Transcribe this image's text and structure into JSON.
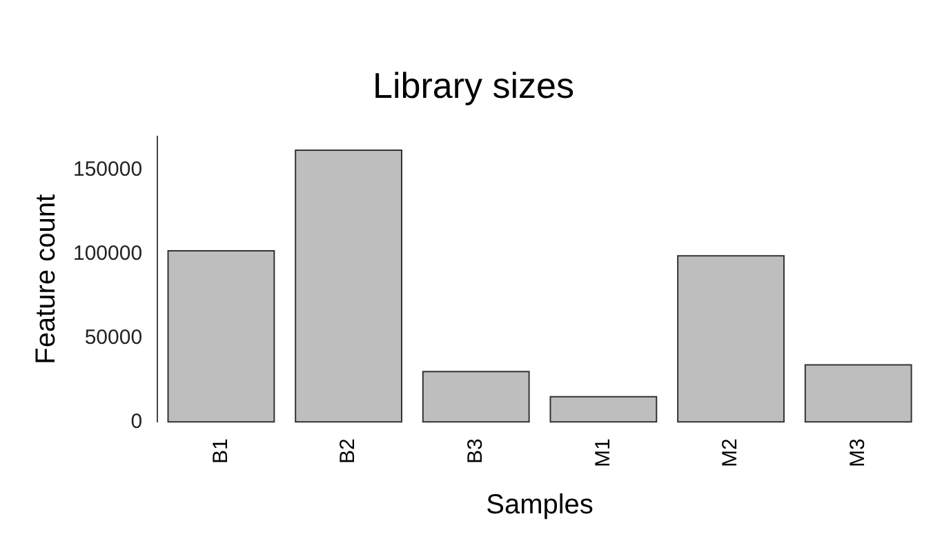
{
  "chart_data": {
    "type": "bar",
    "title": "Library sizes",
    "xlabel": "Samples",
    "ylabel": "Feature count",
    "categories": [
      "B1",
      "B2",
      "B3",
      "M1",
      "M2",
      "M3"
    ],
    "values": [
      102000,
      162000,
      30000,
      15000,
      99000,
      34000
    ],
    "color": "#bebebe",
    "ylim": [
      0,
      170000
    ],
    "yticks": [
      0,
      50000,
      100000,
      150000
    ],
    "grid": false,
    "legend": false
  }
}
